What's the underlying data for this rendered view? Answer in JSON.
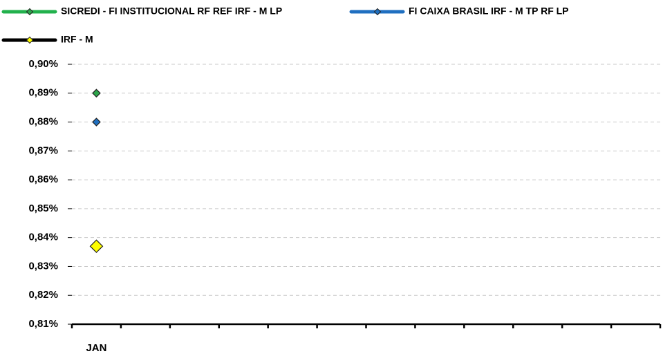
{
  "chart_data": {
    "type": "line",
    "categories": [
      "JAN",
      null,
      null,
      null,
      null,
      null,
      null,
      null,
      null,
      null,
      null,
      null
    ],
    "series": [
      {
        "name": "SICREDI - FI INSTITUCIONAL RF REF IRF - M LP",
        "color": "#22b14c",
        "marker_color": "#2ca54a",
        "values": [
          0.89,
          null,
          null,
          null,
          null,
          null,
          null,
          null,
          null,
          null,
          null,
          null
        ]
      },
      {
        "name": "FI CAIXA BRASIL IRF - M TP RF LP",
        "color": "#1f6fc0",
        "marker_color": "#1f6fbf",
        "values": [
          0.88,
          null,
          null,
          null,
          null,
          null,
          null,
          null,
          null,
          null,
          null,
          null
        ]
      },
      {
        "name": "IRF - M",
        "color": "#000000",
        "marker_color": "#ffff00",
        "values": [
          0.837,
          null,
          null,
          null,
          null,
          null,
          null,
          null,
          null,
          null,
          null,
          null
        ]
      }
    ],
    "ylim": [
      0.81,
      0.9
    ],
    "yticks": [
      {
        "value": 0.81,
        "label": "0,81%"
      },
      {
        "value": 0.82,
        "label": "0,82%"
      },
      {
        "value": 0.83,
        "label": "0,83%"
      },
      {
        "value": 0.84,
        "label": "0,84%"
      },
      {
        "value": 0.85,
        "label": "0,85%"
      },
      {
        "value": 0.86,
        "label": "0,86%"
      },
      {
        "value": 0.87,
        "label": "0,87%"
      },
      {
        "value": 0.88,
        "label": "0,88%"
      },
      {
        "value": 0.89,
        "label": "0,89%"
      },
      {
        "value": 0.9,
        "label": "0,90%"
      }
    ],
    "grid": true,
    "legend": "top"
  }
}
